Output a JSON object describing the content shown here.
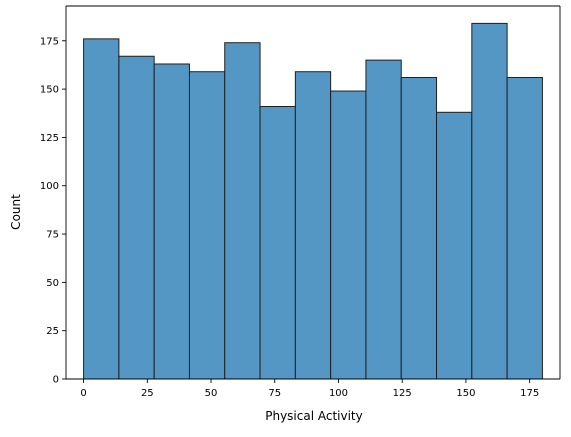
{
  "chart_data": {
    "type": "bar",
    "title": "",
    "xlabel": "Physical Activity",
    "ylabel": "Count",
    "bin_edges": [
      0,
      13.85,
      27.69,
      41.54,
      55.38,
      69.23,
      83.08,
      96.92,
      110.77,
      124.62,
      138.46,
      152.31,
      166.15,
      180
    ],
    "values": [
      176,
      167,
      163,
      159,
      174,
      141,
      159,
      149,
      165,
      156,
      138,
      184,
      156
    ],
    "xlim": [
      -6.9,
      186.9
    ],
    "ylim": [
      0,
      193
    ],
    "xticks": [
      0,
      25,
      50,
      75,
      100,
      125,
      150,
      175
    ],
    "yticks": [
      0,
      25,
      50,
      75,
      100,
      125,
      150,
      175
    ],
    "grid": false,
    "legend": false,
    "colors": {
      "bar_fill": "#5497c5",
      "bar_edge": "#1f1f1f",
      "axis": "#000000"
    }
  }
}
